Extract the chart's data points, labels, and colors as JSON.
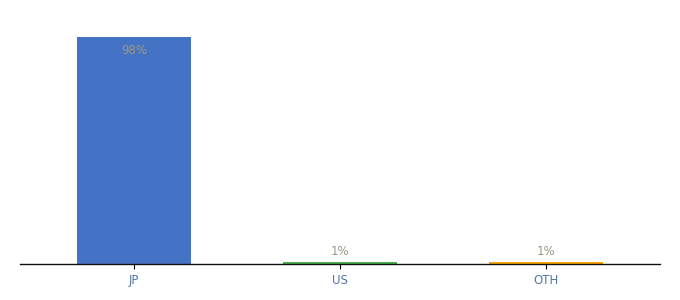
{
  "categories": [
    "JP",
    "US",
    "OTH"
  ],
  "values": [
    98,
    1,
    1
  ],
  "bar_colors": [
    "#4472c4",
    "#4caf50",
    "#ffa500"
  ],
  "labels": [
    "98%",
    "1%",
    "1%"
  ],
  "ylim": [
    0,
    110
  ],
  "background_color": "#ffffff",
  "label_color": "#999988",
  "label_fontsize": 8.5,
  "tick_fontsize": 8.5,
  "tick_color": "#5577aa",
  "bar_width": 0.55
}
